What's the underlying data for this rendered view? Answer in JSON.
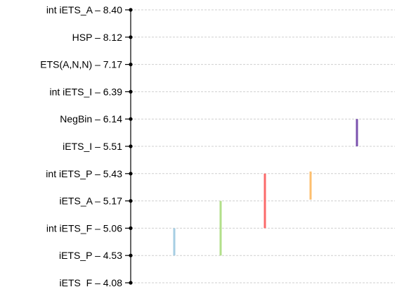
{
  "chart_data": {
    "type": "nemenyi",
    "methods": [
      {
        "label": "int iETS_A – 8.40",
        "rank": 8.4
      },
      {
        "label": "HSP – 8.12",
        "rank": 8.12
      },
      {
        "label": "ETS(A,N,N) – 7.17",
        "rank": 7.17
      },
      {
        "label": "int iETS_I – 6.39",
        "rank": 6.39
      },
      {
        "label": "NegBin – 6.14",
        "rank": 6.14
      },
      {
        "label": "iETS_I – 5.51",
        "rank": 5.51
      },
      {
        "label": "int iETS_P – 5.43",
        "rank": 5.43
      },
      {
        "label": "iETS_A – 5.17",
        "rank": 5.17
      },
      {
        "label": "int iETS_F – 5.06",
        "rank": 5.06
      },
      {
        "label": "iETS_P – 4.53",
        "rank": 4.53
      },
      {
        "label": "iETS_F – 4.08",
        "rank": 4.08
      }
    ],
    "groups": [
      {
        "from": 9,
        "to": 8,
        "color": "#a6cee3"
      },
      {
        "from": 9,
        "to": 7,
        "color": "#b2df8a"
      },
      {
        "from": 8,
        "to": 6,
        "color": "#fb6a6a"
      },
      {
        "from": 6,
        "to": 6,
        "color": "#fdbf6f"
      },
      {
        "from": 4,
        "to": 5,
        "color": "#7b52ae"
      }
    ],
    "grid": true
  }
}
